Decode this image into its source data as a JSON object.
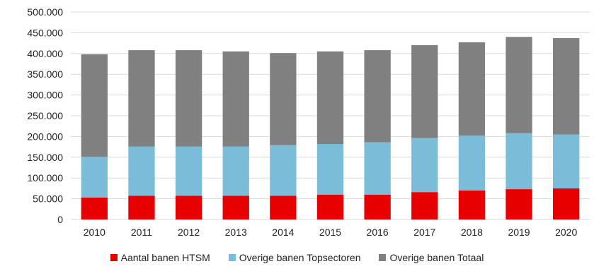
{
  "chart_data": {
    "type": "bar",
    "stacked": true,
    "categories": [
      "2010",
      "2011",
      "2012",
      "2013",
      "2014",
      "2015",
      "2016",
      "2017",
      "2018",
      "2019",
      "2020"
    ],
    "series": [
      {
        "name": "Aantal banen HTSM",
        "color": "#e60000",
        "values": [
          53000,
          57000,
          57000,
          57000,
          57000,
          60000,
          60000,
          66000,
          70000,
          73000,
          75000
        ]
      },
      {
        "name": "Overige banen Topsectoren",
        "color": "#7bbdd9",
        "values": [
          98000,
          119000,
          119000,
          119000,
          122000,
          122000,
          126000,
          130000,
          132000,
          135000,
          130000
        ]
      },
      {
        "name": "Overige banen Totaal",
        "color": "#808080",
        "values": [
          247000,
          232000,
          232000,
          229000,
          222000,
          223000,
          222000,
          224000,
          225000,
          232000,
          232000
        ]
      }
    ],
    "ylim": [
      0,
      500000
    ],
    "yticks": [
      "0",
      "50.000",
      "100.000",
      "150.000",
      "200.000",
      "250.000",
      "300.000",
      "350.000",
      "400.000",
      "450.000",
      "500.000"
    ],
    "ytick_values": [
      0,
      50000,
      100000,
      150000,
      200000,
      250000,
      300000,
      350000,
      400000,
      450000,
      500000
    ],
    "grid": true,
    "legend_position": "bottom",
    "title": "",
    "xlabel": "",
    "ylabel": ""
  }
}
